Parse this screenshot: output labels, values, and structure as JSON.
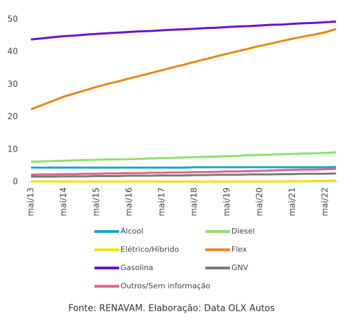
{
  "chart_data": {
    "type": "line",
    "categories": [
      "mai/13",
      null,
      null,
      "mai/14",
      null,
      null,
      "mai/15",
      null,
      null,
      "mai/16",
      null,
      null,
      "mai/17",
      null,
      null,
      "mai/18",
      null,
      null,
      "mai/19",
      null,
      null,
      "mai/20",
      null,
      null,
      "mai/21",
      null,
      null,
      "mai/22",
      null
    ],
    "series": [
      {
        "name": "Álcool",
        "color": "#1aa3d9",
        "values": [
          4.4,
          4.4,
          4.4,
          4.4,
          4.4,
          4.4,
          4.4,
          4.4,
          4.4,
          4.4,
          4.4,
          4.4,
          4.4,
          4.4,
          4.4,
          4.5,
          4.5,
          4.5,
          4.5,
          4.5,
          4.5,
          4.5,
          4.5,
          4.5,
          4.5,
          4.5,
          4.5,
          4.5,
          4.6
        ]
      },
      {
        "name": "Diesel",
        "color": "#8ee06a",
        "values": [
          6.2,
          6.3,
          6.4,
          6.5,
          6.6,
          6.7,
          6.8,
          6.9,
          6.9,
          7.0,
          7.1,
          7.2,
          7.3,
          7.4,
          7.5,
          7.6,
          7.7,
          7.8,
          7.9,
          8.0,
          8.2,
          8.3,
          8.4,
          8.5,
          8.6,
          8.7,
          8.8,
          8.9,
          9.1
        ]
      },
      {
        "name": "Elétrico/Híbrido",
        "color": "#f2e000",
        "values": [
          0.1,
          0.1,
          0.1,
          0.1,
          0.1,
          0.1,
          0.1,
          0.1,
          0.1,
          0.1,
          0.1,
          0.1,
          0.1,
          0.1,
          0.1,
          0.1,
          0.1,
          0.1,
          0.1,
          0.1,
          0.1,
          0.1,
          0.1,
          0.1,
          0.2,
          0.2,
          0.3,
          0.3,
          0.4
        ]
      },
      {
        "name": "Flex",
        "color": "#e8860c",
        "values": [
          22.3,
          23.6,
          24.9,
          26.2,
          27.2,
          28.2,
          29.2,
          30.1,
          30.9,
          31.8,
          32.6,
          33.5,
          34.3,
          35.2,
          36.0,
          36.9,
          37.7,
          38.6,
          39.4,
          40.2,
          41.0,
          41.8,
          42.5,
          43.3,
          44.0,
          44.7,
          45.3,
          46.0,
          47.0
        ]
      },
      {
        "name": "Gasolina",
        "color": "#6a0fd0",
        "values": [
          43.8,
          44.1,
          44.5,
          44.8,
          45.0,
          45.3,
          45.5,
          45.7,
          45.9,
          46.1,
          46.3,
          46.4,
          46.6,
          46.8,
          46.9,
          47.1,
          47.3,
          47.4,
          47.6,
          47.8,
          47.9,
          48.1,
          48.3,
          48.4,
          48.6,
          48.8,
          48.9,
          49.1,
          49.3
        ]
      },
      {
        "name": "GNV",
        "color": "#7a7a7a",
        "values": [
          1.6,
          1.6,
          1.6,
          1.7,
          1.7,
          1.7,
          1.8,
          1.8,
          1.8,
          1.9,
          1.9,
          1.9,
          2.0,
          2.0,
          2.0,
          2.1,
          2.1,
          2.2,
          2.2,
          2.2,
          2.3,
          2.3,
          2.3,
          2.4,
          2.4,
          2.5,
          2.5,
          2.5,
          2.6
        ]
      },
      {
        "name": "Outros/Sem informação",
        "color": "#e0628a",
        "values": [
          2.2,
          2.3,
          2.3,
          2.4,
          2.4,
          2.5,
          2.5,
          2.6,
          2.6,
          2.7,
          2.7,
          2.8,
          2.8,
          2.9,
          2.9,
          3.0,
          3.0,
          3.1,
          3.2,
          3.2,
          3.3,
          3.4,
          3.5,
          3.6,
          3.7,
          3.8,
          3.8,
          3.9,
          4.0
        ]
      }
    ],
    "ylim": [
      0,
      50
    ],
    "yticks": [
      0,
      10,
      20,
      30,
      40,
      50
    ],
    "source": "Fonte: RENAVAM. Elaboração: Data OLX Autos"
  }
}
